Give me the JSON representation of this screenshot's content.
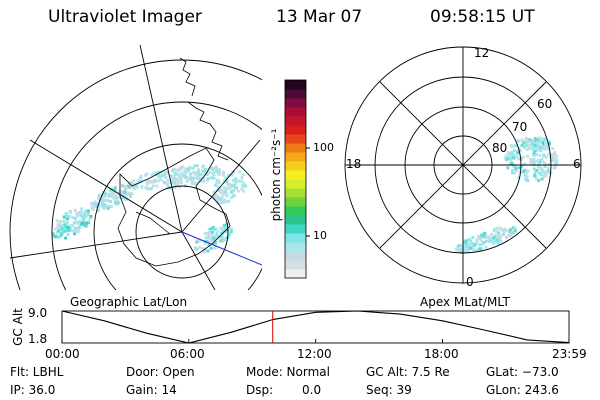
{
  "header": {
    "instrument": "Ultraviolet Imager",
    "date": "13 Mar 07",
    "time": "09:58:15 UT"
  },
  "left_panel": {
    "label": "Geographic Lat/Lon"
  },
  "colorbar": {
    "unit_label": "photon cm⁻²s⁻¹",
    "tick_labels": [
      "100",
      "10"
    ],
    "colors": [
      "#f0f0f0",
      "#d8dee6",
      "#c4dbe4",
      "#a8e6ec",
      "#7fe4e8",
      "#3fd7c8",
      "#2cc38c",
      "#31c85c",
      "#6fd33c",
      "#a7df35",
      "#d8ec2c",
      "#f4f01f",
      "#f7cf1a",
      "#f4a81a",
      "#ee7a1a",
      "#e44818",
      "#d81f1a",
      "#c2142b",
      "#a60f3a",
      "#7e0c42",
      "#4c0938",
      "#22041c"
    ]
  },
  "right_panel": {
    "label": "Apex MLat/MLT",
    "mlt_labels": [
      "12",
      "18",
      "6",
      "0"
    ],
    "mlat_labels": [
      "60",
      "70",
      "80"
    ]
  },
  "altitude_plot": {
    "ylabel": "GC Alt",
    "y_ticks": [
      "9.0",
      "1.8"
    ],
    "x_ticks": [
      "00:00",
      "06:00",
      "12:00",
      "18:00",
      "23:59"
    ]
  },
  "info": {
    "filter": "Flt: LBHL",
    "door": "Door: Open",
    "mode": "Mode: Normal",
    "gc_alt": "GC Alt: 7.5 Re",
    "glat": "GLat: −73.0",
    "ip": "IP: 36.0",
    "gain": "Gain: 14",
    "dsp_label": "Dsp:",
    "dsp_value": "0.0",
    "seq": "Seq: 39",
    "glon": "GLon: 243.6"
  },
  "chart_data": {
    "type": "line",
    "ylabel": "GC Alt",
    "ylim": [
      1.8,
      9.0
    ],
    "x": [
      "00:00",
      "02:00",
      "04:00",
      "06:00",
      "08:00",
      "10:00",
      "12:00",
      "14:00",
      "16:00",
      "18:00",
      "20:00",
      "22:00",
      "23:59"
    ],
    "values": [
      9.0,
      6.8,
      4.0,
      1.8,
      4.2,
      7.1,
      8.7,
      9.0,
      8.3,
      6.8,
      4.7,
      2.5,
      1.9
    ],
    "current_time": "09:58"
  }
}
